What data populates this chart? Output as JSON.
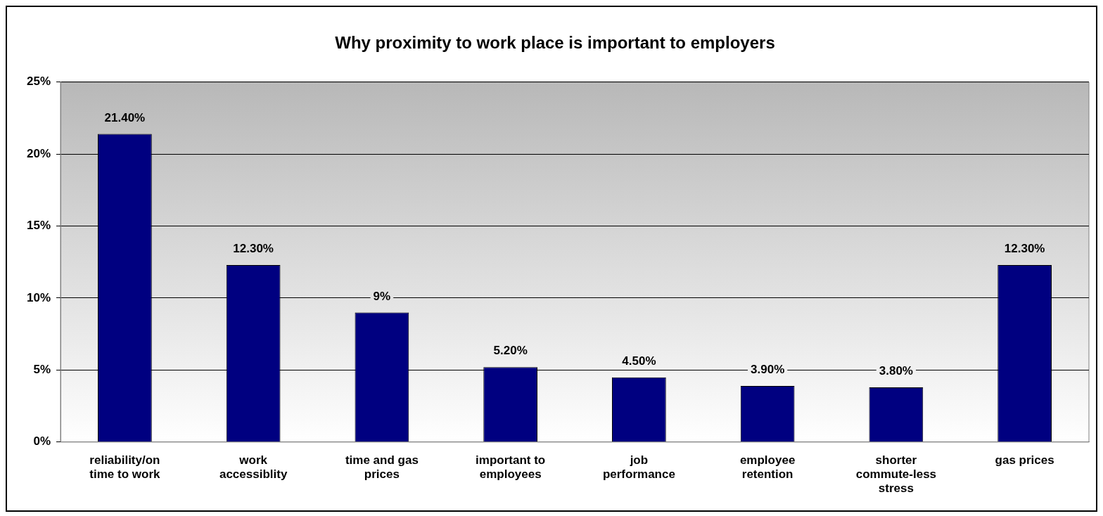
{
  "chart_data": {
    "type": "bar",
    "title": "Why proximity to work place is important to employers",
    "categories": [
      "reliability/on time to work",
      "work accessiblity",
      "time and gas prices",
      "important to employees",
      "job performance",
      "employee retention",
      "shorter commute-less stress",
      "gas prices"
    ],
    "values": [
      21.4,
      12.3,
      9,
      5.2,
      4.5,
      3.9,
      3.8,
      12.3
    ],
    "value_labels": [
      "21.40%",
      "12.30%",
      "9%",
      "5.20%",
      "4.50%",
      "3.90%",
      "3.80%",
      "12.30%"
    ],
    "color": "#000080",
    "ylim": [
      0,
      25
    ],
    "yticks": [
      {
        "value": 0,
        "label": "0%"
      },
      {
        "value": 5,
        "label": "5%"
      },
      {
        "value": 10,
        "label": "10%"
      },
      {
        "value": 15,
        "label": "15%"
      },
      {
        "value": 20,
        "label": "20%"
      },
      {
        "value": 25,
        "label": "25%"
      }
    ],
    "grid": "y",
    "legend": false
  }
}
